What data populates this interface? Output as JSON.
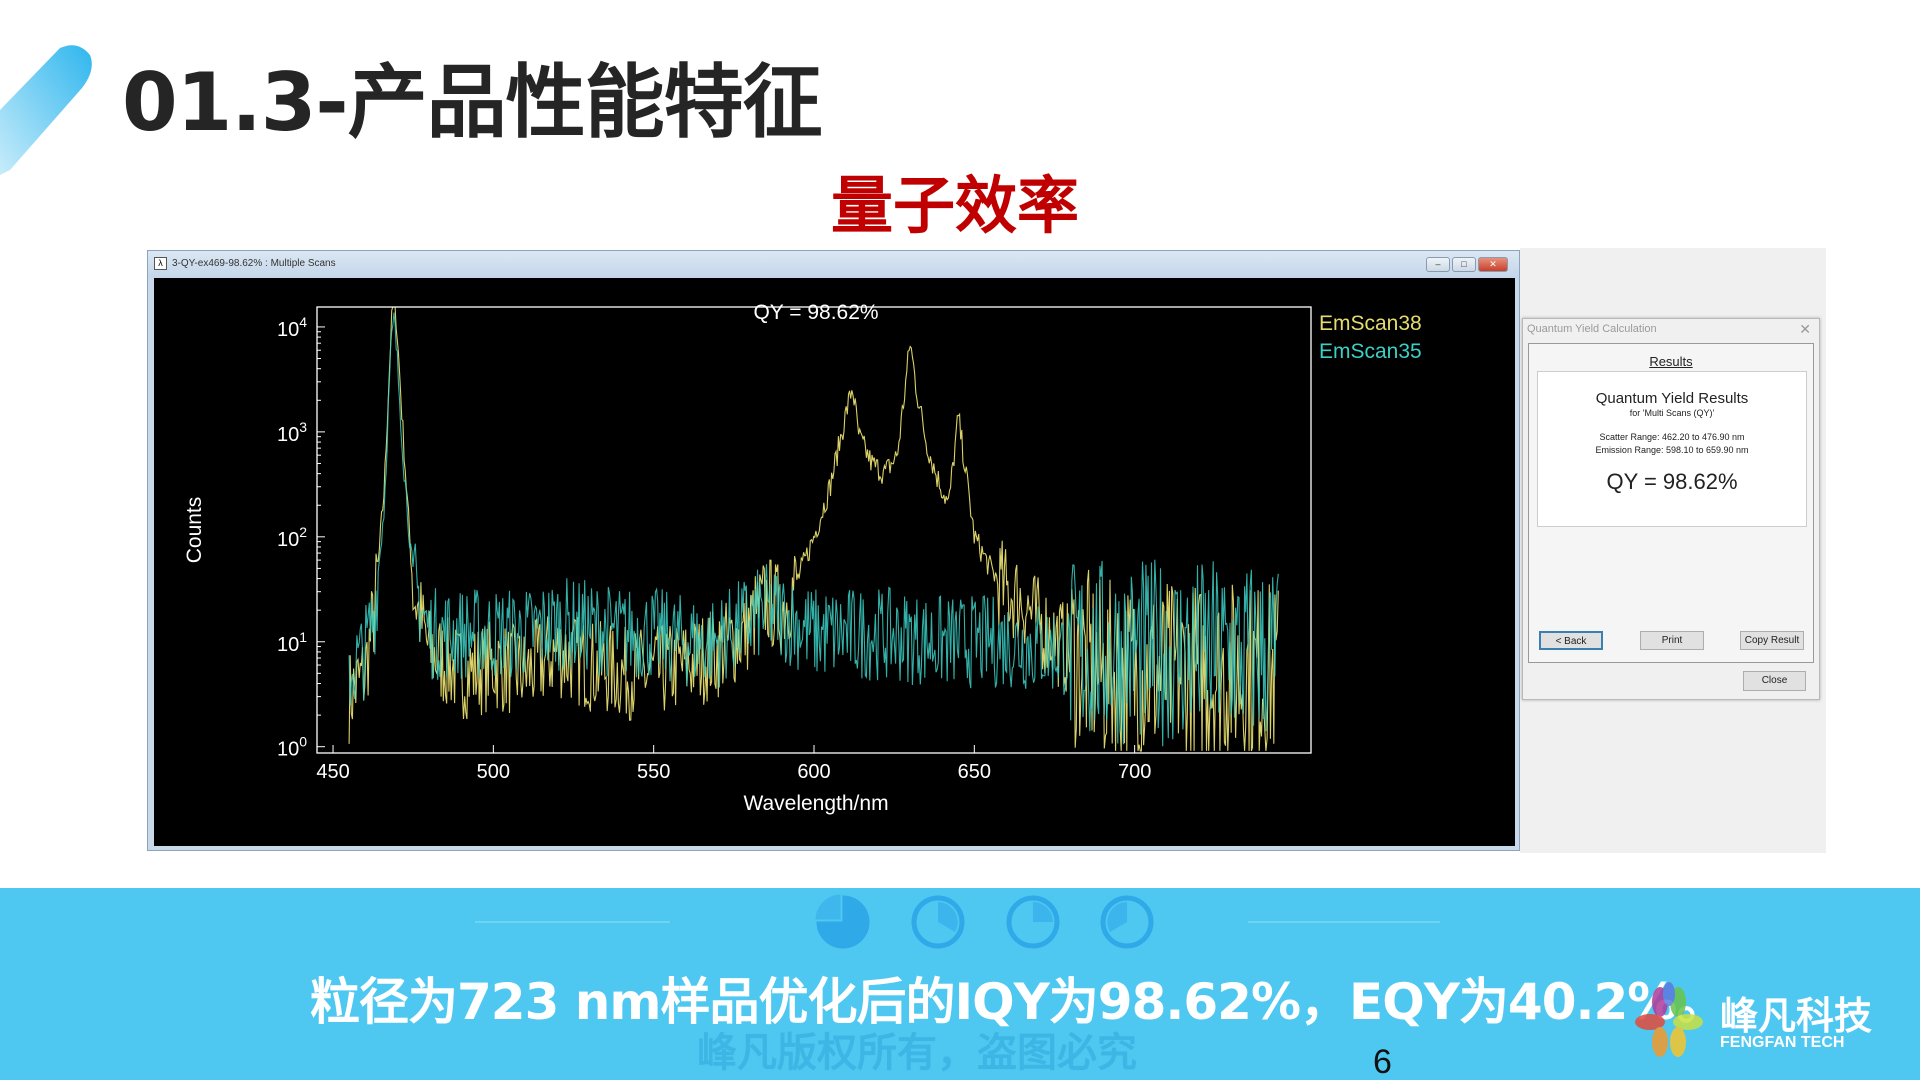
{
  "slide": {
    "title": "01.3-产品性能特征",
    "subtitle": "量子效率",
    "caption": "粒径为723 nm样品优化后的IQY为98.62%，EQY为40.2%。",
    "watermark": "峰凡版权所有，盗图必究",
    "page_number": "6",
    "brand_cn": "峰凡科技",
    "brand_en": "FENGFAN TECH",
    "accent_color": "#4ec8f1",
    "subtitle_color": "#c00000"
  },
  "window": {
    "title": "3-QY-ex469-98.62% : Multiple Scans",
    "buttons": [
      "minimize",
      "maximize",
      "close"
    ]
  },
  "dialog": {
    "title": "Quantum Yield Calculation",
    "section": "Results",
    "heading": "Quantum Yield Results",
    "subheading": "for 'Multi Scans (QY)'",
    "scatter_range": "Scatter Range: 462.20 to 476.90 nm",
    "emission_range": "Emission Range: 598.10 to 659.90 nm",
    "qy": "QY = 98.62%",
    "back_label": "< Back",
    "print_label": "Print",
    "copy_label": "Copy Result",
    "close_label": "Close"
  },
  "chart_data": {
    "type": "line",
    "title": "QY = 98.62%",
    "xlabel": "Wavelength/nm",
    "ylabel": "Counts",
    "xlim": [
      445,
      755
    ],
    "ylim_log10": [
      -0.06,
      4.19
    ],
    "yscale": "log",
    "x_ticks": [
      "450",
      "500",
      "550",
      "600",
      "650",
      "700"
    ],
    "x_tick_values": [
      450,
      500,
      550,
      600,
      650,
      700
    ],
    "y_ticks": [
      {
        "base": "10",
        "exp": "0"
      },
      {
        "base": "10",
        "exp": "1"
      },
      {
        "base": "10",
        "exp": "2"
      },
      {
        "base": "10",
        "exp": "3"
      },
      {
        "base": "10",
        "exp": "4"
      }
    ],
    "legend_position": "top-right outside",
    "background": "#000000",
    "series": [
      {
        "name": "EmScan38",
        "color": "#e6dc6e",
        "points": [
          [
            455,
            3
          ],
          [
            460,
            5
          ],
          [
            463,
            20
          ],
          [
            466,
            300
          ],
          [
            468,
            8000
          ],
          [
            469,
            25000
          ],
          [
            470,
            9000
          ],
          [
            472,
            800
          ],
          [
            475,
            30
          ],
          [
            480,
            8
          ],
          [
            490,
            5
          ],
          [
            500,
            6
          ],
          [
            510,
            5
          ],
          [
            520,
            8
          ],
          [
            530,
            6
          ],
          [
            540,
            5
          ],
          [
            550,
            5
          ],
          [
            560,
            6
          ],
          [
            570,
            8
          ],
          [
            578,
            12
          ],
          [
            585,
            25
          ],
          [
            590,
            20
          ],
          [
            595,
            40
          ],
          [
            600,
            100
          ],
          [
            605,
            300
          ],
          [
            610,
            1500
          ],
          [
            612,
            2700
          ],
          [
            614,
            900
          ],
          [
            618,
            500
          ],
          [
            622,
            400
          ],
          [
            626,
            600
          ],
          [
            628,
            2000
          ],
          [
            630,
            7200
          ],
          [
            632,
            2500
          ],
          [
            635,
            800
          ],
          [
            638,
            400
          ],
          [
            642,
            200
          ],
          [
            645,
            1400
          ],
          [
            647,
            500
          ],
          [
            650,
            100
          ],
          [
            655,
            50
          ],
          [
            660,
            30
          ],
          [
            665,
            25
          ],
          [
            670,
            15
          ],
          [
            680,
            8
          ],
          [
            690,
            5
          ],
          [
            700,
            5
          ],
          [
            720,
            5
          ],
          [
            740,
            5
          ],
          [
            745,
            5
          ]
        ]
      },
      {
        "name": "EmScan35",
        "color": "#3ccfc6",
        "points": [
          [
            455,
            5
          ],
          [
            460,
            8
          ],
          [
            463,
            20
          ],
          [
            466,
            200
          ],
          [
            468,
            6000
          ],
          [
            469,
            12000
          ],
          [
            470,
            5000
          ],
          [
            472,
            500
          ],
          [
            475,
            40
          ],
          [
            480,
            12
          ],
          [
            490,
            12
          ],
          [
            500,
            12
          ],
          [
            510,
            12
          ],
          [
            520,
            15
          ],
          [
            530,
            14
          ],
          [
            540,
            12
          ],
          [
            550,
            12
          ],
          [
            560,
            10
          ],
          [
            570,
            10
          ],
          [
            578,
            15
          ],
          [
            585,
            20
          ],
          [
            590,
            18
          ],
          [
            600,
            12
          ],
          [
            620,
            12
          ],
          [
            640,
            10
          ],
          [
            660,
            10
          ],
          [
            680,
            8
          ],
          [
            700,
            8
          ],
          [
            720,
            8
          ],
          [
            740,
            8
          ],
          [
            745,
            8
          ]
        ]
      }
    ]
  }
}
